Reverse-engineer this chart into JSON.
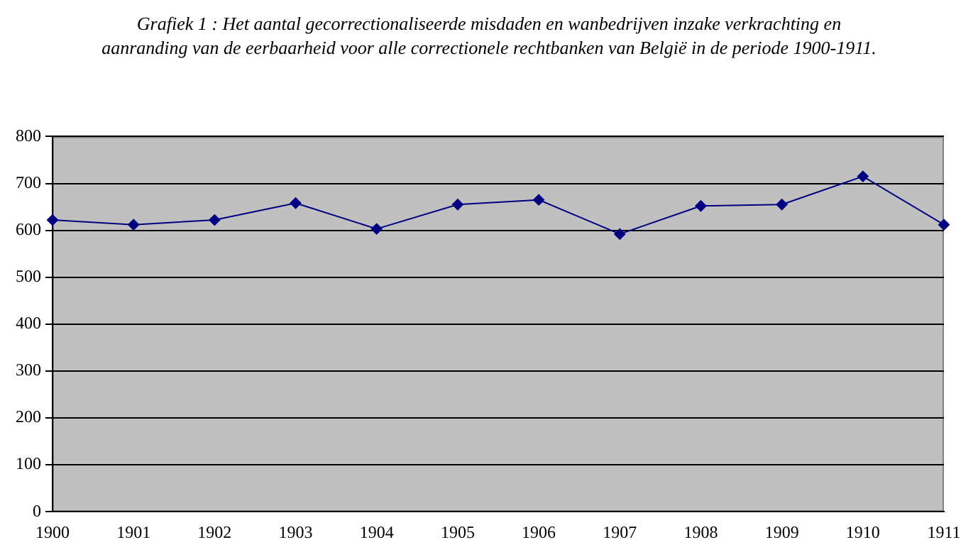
{
  "chart_data": {
    "type": "line",
    "title": "Grafiek 1 : Het aantal gecorrectionaliseerde misdaden en wanbedrijven inzake verkrachting en aanranding van de eerbaarheid voor alle correctionele rechtbanken van België in de periode 1900-1911.",
    "categories": [
      "1900",
      "1901",
      "1902",
      "1903",
      "1904",
      "1905",
      "1906",
      "1907",
      "1908",
      "1909",
      "1910",
      "1911"
    ],
    "series": [
      {
        "color": "#000080",
        "values": [
          622,
          612,
          622,
          658,
          603,
          655,
          665,
          592,
          652,
          655,
          715,
          612
        ]
      }
    ],
    "ylim": [
      0,
      800
    ],
    "yticks": [
      0,
      100,
      200,
      300,
      400,
      500,
      600,
      700,
      800
    ],
    "grid": "y",
    "legend": false,
    "marker": "diamond",
    "line_style": "solid"
  }
}
